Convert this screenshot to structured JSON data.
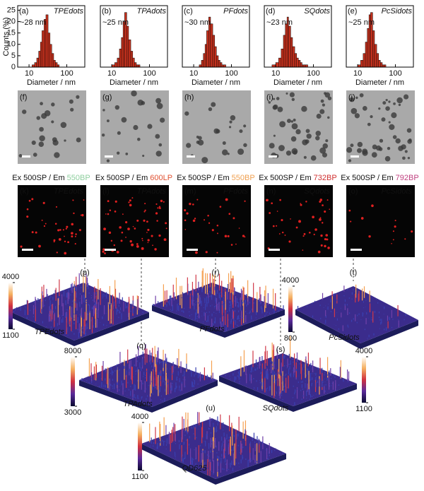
{
  "chart_data": [
    {
      "type": "histogram",
      "label": "(a)",
      "name": "TPEdots",
      "name_color": "#6fc48a",
      "size_label": "~28 nm",
      "color": "#c8321e",
      "bins": [
        12,
        14,
        16,
        18,
        20,
        22,
        25,
        28,
        32,
        36,
        40,
        45,
        50,
        56,
        63
      ],
      "counts": [
        1,
        2,
        4,
        7,
        11,
        16,
        21,
        23,
        15,
        10,
        6,
        3,
        2,
        1
      ],
      "xlim": [
        5,
        300
      ],
      "xticks": [
        10,
        100
      ],
      "ylim": [
        0,
        27
      ],
      "yticks": [
        0,
        5,
        10,
        15,
        20,
        25
      ],
      "xlabel": "Diameter / nm",
      "ylabel": "Counts (%)"
    },
    {
      "type": "histogram",
      "label": "(b)",
      "name": "TPAdots",
      "name_color": "#e0403a",
      "size_label": "~25 nm",
      "color": "#c8321e",
      "bins": [
        10,
        12,
        14,
        16,
        18,
        20,
        22,
        25,
        28,
        32,
        36,
        40,
        45,
        50,
        56
      ],
      "counts": [
        1,
        2,
        4,
        8,
        13,
        20,
        24,
        18,
        12,
        7,
        4,
        2,
        1,
        1
      ],
      "xlim": [
        5,
        300
      ],
      "xticks": [
        10,
        100
      ],
      "ylim": [
        0,
        27
      ],
      "xlabel": "Diameter / nm"
    },
    {
      "type": "histogram",
      "label": "(c)",
      "name": "PFdots",
      "name_color": "#f0a040",
      "size_label": "~30 nm",
      "color": "#c8321e",
      "bins": [
        14,
        16,
        18,
        20,
        22,
        25,
        28,
        32,
        36,
        40,
        45,
        50,
        56,
        63,
        71
      ],
      "counts": [
        1,
        3,
        6,
        10,
        16,
        22,
        19,
        14,
        9,
        5,
        3,
        2,
        1,
        1
      ],
      "xlim": [
        5,
        300
      ],
      "xticks": [
        10,
        100
      ],
      "ylim": [
        0,
        27
      ],
      "xlabel": "Diameter / nm"
    },
    {
      "type": "histogram",
      "label": "(d)",
      "name": "SQdots",
      "name_color": "#d02020",
      "size_label": "~23 nm",
      "color": "#c8321e",
      "bins": [
        8,
        10,
        12,
        14,
        16,
        18,
        20,
        22,
        25,
        28,
        32,
        36,
        40,
        45,
        50,
        56,
        63,
        71
      ],
      "counts": [
        1,
        2,
        4,
        8,
        14,
        19,
        22,
        18,
        13,
        9,
        6,
        4,
        3,
        2,
        1,
        1,
        1
      ],
      "xlim": [
        5,
        300
      ],
      "xticks": [
        10,
        100
      ],
      "ylim": [
        0,
        27
      ],
      "xlabel": "Diameter / nm"
    },
    {
      "type": "histogram",
      "label": "(e)",
      "name": "PcSidots",
      "name_color": "#c8306a",
      "size_label": "~25 nm",
      "color": "#c8321e",
      "bins": [
        10,
        12,
        14,
        16,
        18,
        20,
        22,
        25,
        28,
        32,
        36,
        40,
        45,
        50,
        56
      ],
      "counts": [
        1,
        3,
        6,
        11,
        17,
        23,
        24,
        16,
        10,
        6,
        3,
        2,
        1,
        1
      ],
      "xlim": [
        5,
        300
      ],
      "xticks": [
        10,
        100
      ],
      "ylim": [
        0,
        27
      ],
      "xlabel": "Diameter / nm"
    }
  ],
  "tem_panels": [
    {
      "label": "(f)"
    },
    {
      "label": "(g)"
    },
    {
      "label": "(h)"
    },
    {
      "label": "(i)"
    },
    {
      "label": "(j)"
    }
  ],
  "fluorescence_panels": [
    {
      "label": "(k)",
      "excitation": "Ex 500SP / Em",
      "emission": "550BP",
      "emission_color": "#8fcf9f",
      "name": "TPEdots",
      "name_color": "#5fae6f"
    },
    {
      "label": "(l)",
      "excitation": "Ex 500SP / Em",
      "emission": "600LP",
      "emission_color": "#e05030",
      "name": "TPAdots",
      "name_color": "#e0403a"
    },
    {
      "label": "(m)",
      "excitation": "Ex 500SP / Em",
      "emission": "550BP",
      "emission_color": "#f0a050",
      "name": "PFdots",
      "name_color": "#f0a040"
    },
    {
      "label": "(n)",
      "excitation": "Ex 500SP / Em",
      "emission": "732BP",
      "emission_color": "#d03030",
      "name": "SQdots",
      "name_color": "#d02020"
    },
    {
      "label": "(o)",
      "excitation": "Ex 500SP / Em",
      "emission": "792BP",
      "emission_color": "#c04080",
      "name": "PcSidots",
      "name_color": "#c0307a"
    }
  ],
  "surface_plots": [
    {
      "label": "(p)",
      "name": "TPEdots",
      "name_color": "#5fbf6f",
      "colorbar_ticks": [
        1100,
        4000
      ]
    },
    {
      "label": "(q)",
      "name": "TPAdots",
      "name_color": "#e0403a",
      "colorbar_ticks": [
        3000,
        8000
      ]
    },
    {
      "label": "(r)",
      "name": "PFdots",
      "name_color": "#f0a040"
    },
    {
      "label": "(s)",
      "name": "SQdots",
      "name_color": "#e04030",
      "colorbar_ticks": [
        1100,
        4000
      ]
    },
    {
      "label": "(t)",
      "name": "PcSidots",
      "name_color": "#c0309a",
      "colorbar_ticks": [
        800,
        4000
      ]
    },
    {
      "label": "(u)",
      "name": "QD625",
      "name_color": "#ffffff",
      "colorbar_ticks": [
        1100,
        4000
      ]
    }
  ]
}
